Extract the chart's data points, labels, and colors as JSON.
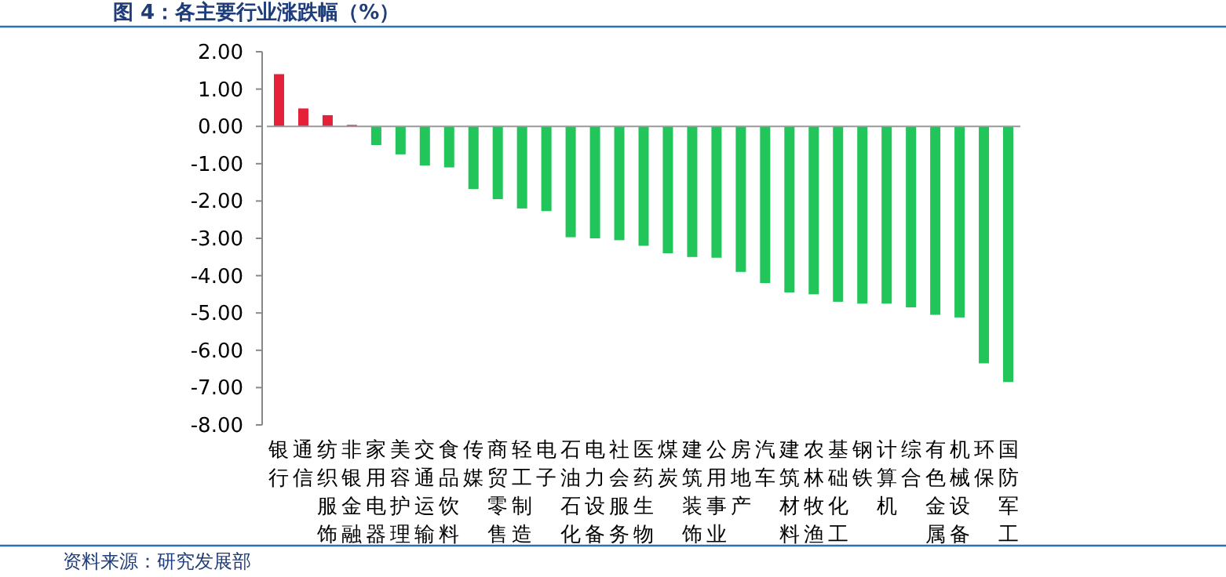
{
  "chart_data": {
    "type": "bar",
    "title": "图 4：各主要行业涨跌幅（%）",
    "categories": [
      "银行",
      "通信",
      "纺织服饰",
      "非银金融",
      "家用电器",
      "美容护理",
      "交通运输",
      "食品饮料",
      "传媒",
      "商贸零售",
      "轻工制造",
      "电子",
      "石油石化",
      "电力设备",
      "社会服务",
      "医药生物",
      "煤炭",
      "建筑装饰",
      "公用事业",
      "房地产",
      "汽车",
      "建筑材料",
      "农林牧渔",
      "基础化工",
      "钢铁",
      "计算机",
      "综合",
      "有色金属",
      "机械设备",
      "环保",
      "国防军工"
    ],
    "values": [
      1.4,
      0.48,
      0.3,
      0.04,
      -0.5,
      -0.75,
      -1.05,
      -1.1,
      -1.68,
      -1.95,
      -2.2,
      -2.27,
      -2.97,
      -3.0,
      -3.05,
      -3.2,
      -3.4,
      -3.5,
      -3.52,
      -3.9,
      -4.2,
      -4.45,
      -4.5,
      -4.7,
      -4.75,
      -4.75,
      -4.85,
      -5.05,
      -5.12,
      -6.35,
      -6.85
    ],
    "colors": [
      "#e5213a",
      "#e5213a",
      "#e5213a",
      "#e5213a",
      "#22c55a",
      "#22c55a",
      "#22c55a",
      "#22c55a",
      "#22c55a",
      "#22c55a",
      "#22c55a",
      "#22c55a",
      "#22c55a",
      "#22c55a",
      "#22c55a",
      "#22c55a",
      "#22c55a",
      "#22c55a",
      "#22c55a",
      "#22c55a",
      "#22c55a",
      "#22c55a",
      "#22c55a",
      "#22c55a",
      "#22c55a",
      "#22c55a",
      "#22c55a",
      "#22c55a",
      "#22c55a",
      "#22c55a",
      "#22c55a"
    ],
    "ylim": [
      -8,
      2
    ],
    "yticks": [
      {
        "value": 2,
        "label": "2.00"
      },
      {
        "value": 1,
        "label": "1.00"
      },
      {
        "value": 0,
        "label": "0.00"
      },
      {
        "value": -1,
        "label": "-1.00"
      },
      {
        "value": -2,
        "label": "-2.00"
      },
      {
        "value": -3,
        "label": "-3.00"
      },
      {
        "value": -4,
        "label": "-4.00"
      },
      {
        "value": -5,
        "label": "-5.00"
      },
      {
        "value": -6,
        "label": "-6.00"
      },
      {
        "value": -7,
        "label": "-7.00"
      },
      {
        "value": -8,
        "label": "-8.00"
      }
    ],
    "annotations": [
      "资料来源：研究发展部"
    ]
  }
}
